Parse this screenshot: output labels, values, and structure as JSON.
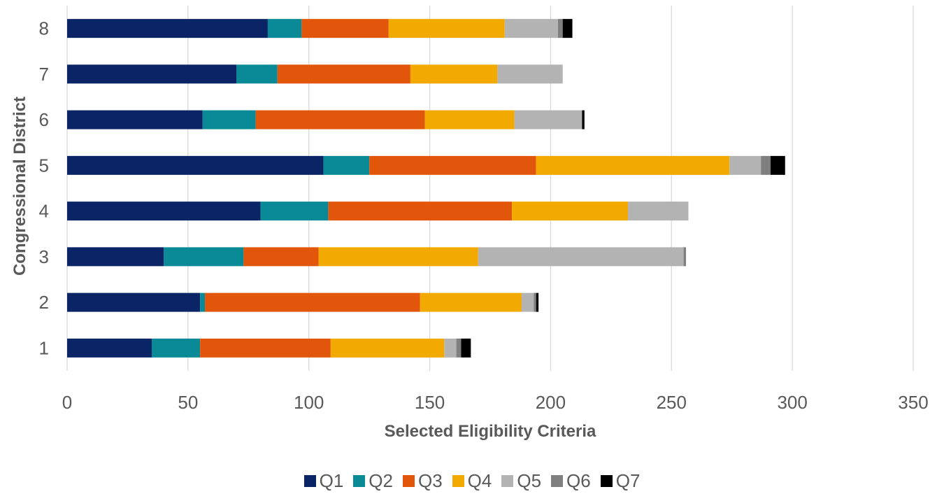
{
  "chart_data": {
    "type": "bar",
    "orientation": "horizontal",
    "stacked": true,
    "categories": [
      "1",
      "2",
      "3",
      "4",
      "5",
      "6",
      "7",
      "8"
    ],
    "series": [
      {
        "name": "Q1",
        "color": "#0B2466",
        "values": [
          35,
          55,
          40,
          80,
          106,
          56,
          70,
          83
        ]
      },
      {
        "name": "Q2",
        "color": "#0A8A96",
        "values": [
          20,
          2,
          33,
          28,
          19,
          22,
          17,
          14
        ]
      },
      {
        "name": "Q3",
        "color": "#E2560B",
        "values": [
          54,
          89,
          31,
          76,
          69,
          70,
          55,
          36
        ]
      },
      {
        "name": "Q4",
        "color": "#F2A900",
        "values": [
          47,
          42,
          66,
          48,
          80,
          37,
          36,
          48
        ]
      },
      {
        "name": "Q5",
        "color": "#B3B3B3",
        "values": [
          5,
          5,
          85,
          25,
          13,
          28,
          27,
          22
        ]
      },
      {
        "name": "Q6",
        "color": "#7F7F7F",
        "values": [
          2,
          1,
          1,
          0,
          4,
          0,
          0,
          2
        ]
      },
      {
        "name": "Q7",
        "color": "#000000",
        "values": [
          4,
          1,
          0,
          0,
          6,
          1,
          0,
          4
        ]
      }
    ],
    "xlabel": "Selected Eligibility Criteria",
    "ylabel": "Congressional District",
    "xlim": [
      0,
      350
    ],
    "xticks": [
      0,
      50,
      100,
      150,
      200,
      250,
      300,
      350
    ],
    "grid": "vertical",
    "legend": "bottom"
  }
}
